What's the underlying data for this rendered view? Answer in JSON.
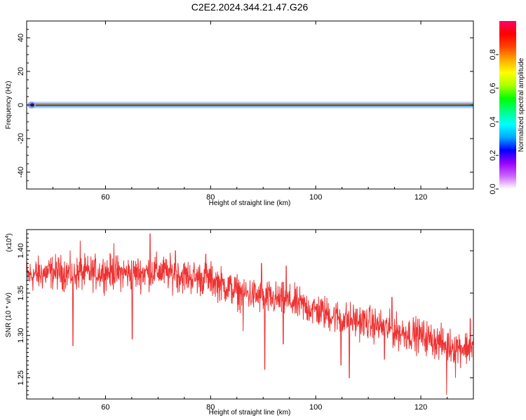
{
  "figure": {
    "title": "C2E2.2024.344.21.47.G26"
  },
  "chart_data": [
    {
      "type": "heatmap",
      "xlabel": "Height of straight line (km)",
      "ylabel": "Frequency (Hz)",
      "xlim": [
        45,
        130
      ],
      "ylim": [
        -50,
        50
      ],
      "xticks": [
        60,
        80,
        100,
        120
      ],
      "xtick_labels": [
        "60",
        "80",
        "100",
        "120"
      ],
      "yticks": [
        40,
        20,
        0,
        -20,
        -40
      ],
      "ytick_labels": [
        "40",
        "20",
        "0",
        "-20",
        "-40"
      ],
      "band": {
        "center_hz": 0,
        "core_halfwidth_hz": 0.6,
        "halo_halfwidth_hz": 2.0
      },
      "colorbar": {
        "label": "Normalized spectral amplitude",
        "range": [
          0,
          1
        ],
        "ticks": [
          0.0,
          0.2,
          0.4,
          0.6,
          0.8
        ],
        "tick_labels": [
          "0.0",
          "0.2",
          "0.4",
          "0.6",
          "0.8"
        ],
        "colors": [
          "#ffffff",
          "#cc66ff",
          "#9900ff",
          "#0000ff",
          "#00aaff",
          "#00ffff",
          "#00ff88",
          "#00ff00",
          "#aaff00",
          "#ffff00",
          "#ffaa00",
          "#ff4400",
          "#ff0000",
          "#ff0066"
        ]
      }
    },
    {
      "type": "line",
      "xlabel": "Height of straight line (km)",
      "ylabel": "SNR (10 * v/v)",
      "scale_label": "(x10",
      "scale_exponent": "4",
      "xlim": [
        45,
        130
      ],
      "ylim": [
        1.225,
        1.425
      ],
      "xticks": [
        60,
        80,
        100,
        120
      ],
      "xtick_labels": [
        "60",
        "80",
        "100",
        "120"
      ],
      "yticks": [
        1.4,
        1.35,
        1.3,
        1.25
      ],
      "ytick_labels": [
        "1.40",
        "1.35",
        "1.30",
        "1.25"
      ],
      "line_color": "#ee3333",
      "trend_x": [
        45,
        50,
        55,
        60,
        65,
        70,
        75,
        80,
        85,
        90,
        95,
        100,
        105,
        110,
        115,
        120,
        125,
        130
      ],
      "trend_y": [
        1.37,
        1.375,
        1.373,
        1.375,
        1.373,
        1.376,
        1.37,
        1.366,
        1.352,
        1.345,
        1.34,
        1.33,
        1.32,
        1.315,
        1.305,
        1.3,
        1.288,
        1.285
      ],
      "noise_amplitude": 0.022,
      "samples": 1500,
      "dips": [
        [
          53.8,
          1.288
        ],
        [
          65.1,
          1.296
        ],
        [
          86.2,
          1.305
        ],
        [
          90.3,
          1.26
        ],
        [
          93.8,
          1.29
        ],
        [
          104.8,
          1.265
        ],
        [
          106.4,
          1.25
        ],
        [
          113.1,
          1.272
        ],
        [
          124.9,
          1.23
        ],
        [
          126.6,
          1.25
        ]
      ],
      "spikes": [
        [
          55.2,
          1.412
        ],
        [
          61.6,
          1.409
        ],
        [
          68.5,
          1.42
        ],
        [
          73.3,
          1.4
        ],
        [
          79.1,
          1.396
        ],
        [
          89.7,
          1.385
        ],
        [
          94.4,
          1.382
        ],
        [
          114.5,
          1.345
        ],
        [
          129.4,
          1.32
        ]
      ]
    }
  ]
}
